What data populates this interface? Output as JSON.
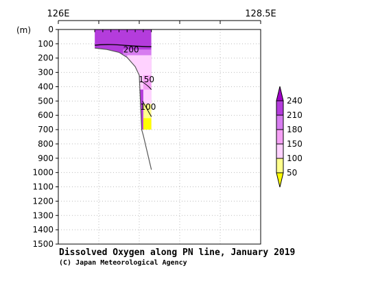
{
  "chart_data": {
    "type": "heatmap",
    "title": "Dissolved Oxygen along PN line, January 2019",
    "credit": "(C) Japan Meteorological Agency",
    "ylabel": "(m)",
    "xlim": [
      126.0,
      128.5
    ],
    "ylim": [
      0,
      1500
    ],
    "x_ticks": [
      126.0,
      126.5,
      127.0,
      127.5,
      128.0,
      128.5
    ],
    "x_tick_labels": [
      {
        "value": 126.0,
        "label": "126E"
      },
      {
        "value": 128.5,
        "label": "128.5E"
      }
    ],
    "y_ticks": [
      0,
      100,
      200,
      300,
      400,
      500,
      600,
      700,
      800,
      900,
      1000,
      1100,
      1200,
      1300,
      1400,
      1500
    ],
    "grid": true,
    "station_lons": [
      126.45,
      126.55,
      126.65,
      126.75,
      126.85,
      126.95,
      127.05,
      127.15
    ],
    "bottom_profile": [
      {
        "lon": 126.45,
        "depth": 130
      },
      {
        "lon": 126.6,
        "depth": 140
      },
      {
        "lon": 126.75,
        "depth": 160
      },
      {
        "lon": 126.85,
        "depth": 195
      },
      {
        "lon": 126.95,
        "depth": 260
      },
      {
        "lon": 127.0,
        "depth": 320
      },
      {
        "lon": 127.03,
        "depth": 700
      },
      {
        "lon": 127.05,
        "depth": 740
      },
      {
        "lon": 127.15,
        "depth": 980
      }
    ],
    "section": {
      "lon_start": 126.45,
      "lon_end": 127.15,
      "max_depth": 700
    },
    "contours": [
      {
        "level": 200,
        "label": "200",
        "label_lon": 126.9,
        "label_depth": 160
      },
      {
        "level": 150,
        "label": "150",
        "label_lon": 127.09,
        "label_depth": 370
      },
      {
        "level": 100,
        "label": "100",
        "label_lon": 127.11,
        "label_depth": 560
      }
    ],
    "levels": [
      50,
      100,
      150,
      180,
      210,
      240
    ],
    "legend": {
      "placement": "right",
      "labels": [
        "50",
        "100",
        "150",
        "180",
        "210",
        "240"
      ],
      "colors": [
        "#ffff00",
        "#ffff8c",
        "#ffd2ff",
        "#f5a0f5",
        "#d77df0",
        "#b43cdc",
        "#a000c8"
      ]
    }
  }
}
